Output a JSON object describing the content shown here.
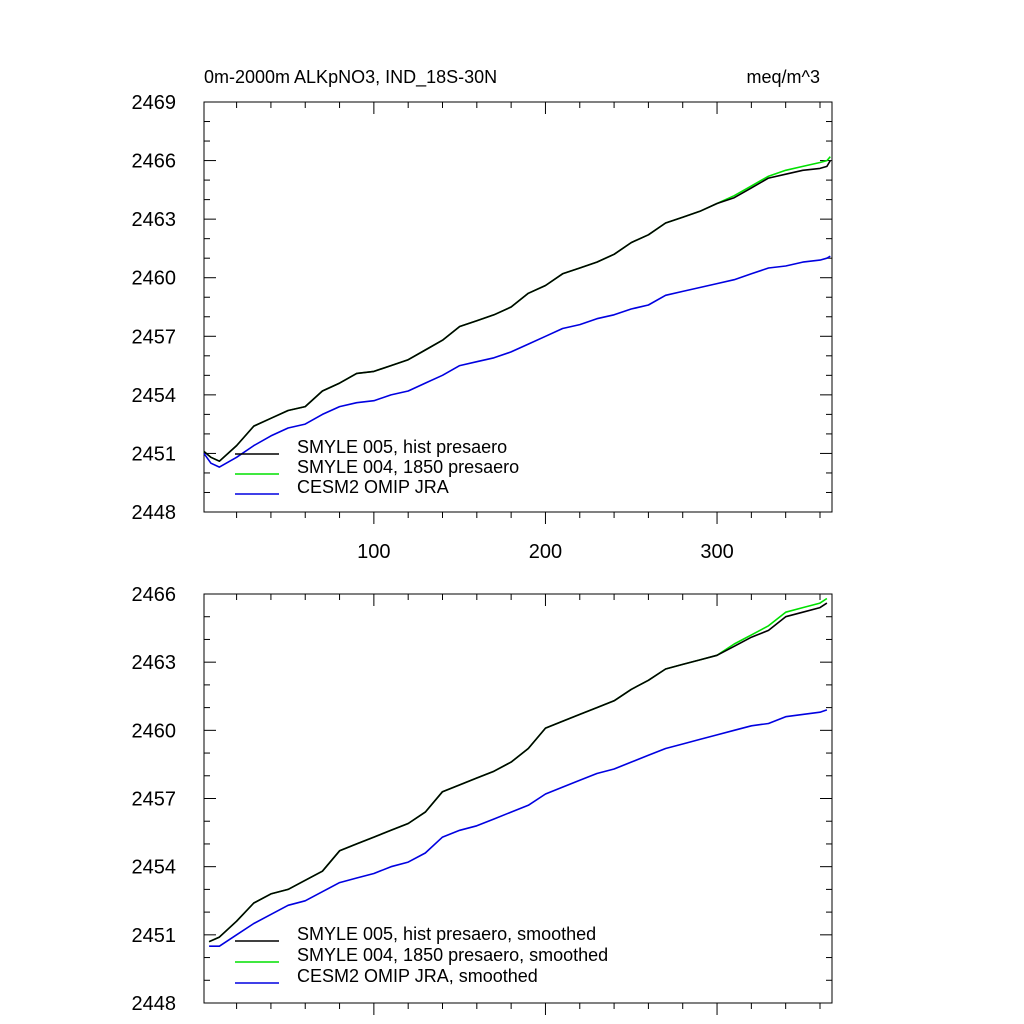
{
  "chart_data": [
    {
      "type": "line",
      "title": "0m-2000m ALKpNO3, IND_18S-30N",
      "units": "meq/m^3",
      "xlim": [
        1,
        367
      ],
      "ylim": [
        2448,
        2469
      ],
      "x_ticks": [
        100,
        200,
        300
      ],
      "y_ticks": [
        2448,
        2451,
        2454,
        2457,
        2460,
        2463,
        2466,
        2469
      ],
      "grid": false,
      "legend_position": "bottom-left",
      "series": [
        {
          "name": "SMYLE 005, hist presaero",
          "color": "#000000",
          "x": [
            1,
            5,
            10,
            20,
            30,
            40,
            50,
            60,
            70,
            80,
            90,
            100,
            110,
            120,
            130,
            140,
            150,
            160,
            170,
            180,
            190,
            200,
            210,
            220,
            230,
            240,
            250,
            260,
            270,
            280,
            290,
            300,
            310,
            320,
            330,
            340,
            350,
            360,
            364,
            366
          ],
          "y": [
            2451.1,
            2450.8,
            2450.6,
            2451.4,
            2452.4,
            2452.8,
            2453.2,
            2453.4,
            2454.2,
            2454.6,
            2455.1,
            2455.2,
            2455.5,
            2455.8,
            2456.3,
            2456.8,
            2457.5,
            2457.8,
            2458.1,
            2458.5,
            2459.2,
            2459.6,
            2460.2,
            2460.5,
            2460.8,
            2461.2,
            2461.8,
            2462.2,
            2462.8,
            2463.1,
            2463.4,
            2463.8,
            2464.1,
            2464.6,
            2465.1,
            2465.3,
            2465.5,
            2465.6,
            2465.7,
            2466.0
          ]
        },
        {
          "name": "SMYLE 004, 1850 presaero",
          "color": "#00e000",
          "x": [
            1,
            5,
            10,
            20,
            30,
            40,
            50,
            60,
            70,
            80,
            90,
            100,
            110,
            120,
            130,
            140,
            150,
            160,
            170,
            180,
            190,
            200,
            210,
            220,
            230,
            240,
            250,
            260,
            270,
            280,
            290,
            300,
            310,
            320,
            330,
            340,
            350,
            360,
            364,
            366
          ],
          "y": [
            2451.1,
            2450.8,
            2450.6,
            2451.4,
            2452.4,
            2452.8,
            2453.2,
            2453.4,
            2454.2,
            2454.6,
            2455.1,
            2455.2,
            2455.5,
            2455.8,
            2456.3,
            2456.8,
            2457.5,
            2457.8,
            2458.1,
            2458.5,
            2459.2,
            2459.6,
            2460.2,
            2460.5,
            2460.8,
            2461.2,
            2461.8,
            2462.2,
            2462.8,
            2463.1,
            2463.4,
            2463.8,
            2464.2,
            2464.7,
            2465.2,
            2465.5,
            2465.7,
            2465.9,
            2466.0,
            2466.2
          ]
        },
        {
          "name": "CESM2 OMIP JRA",
          "color": "#0000e0",
          "x": [
            1,
            5,
            10,
            20,
            30,
            40,
            50,
            60,
            70,
            80,
            90,
            100,
            110,
            120,
            130,
            140,
            150,
            160,
            170,
            180,
            190,
            200,
            210,
            220,
            230,
            240,
            250,
            260,
            270,
            280,
            290,
            300,
            310,
            320,
            330,
            340,
            350,
            360,
            364,
            366
          ],
          "y": [
            2451.0,
            2450.5,
            2450.3,
            2450.8,
            2451.4,
            2451.9,
            2452.3,
            2452.5,
            2453.0,
            2453.4,
            2453.6,
            2453.7,
            2454.0,
            2454.2,
            2454.6,
            2455.0,
            2455.5,
            2455.7,
            2455.9,
            2456.2,
            2456.6,
            2457.0,
            2457.4,
            2457.6,
            2457.9,
            2458.1,
            2458.4,
            2458.6,
            2459.1,
            2459.3,
            2459.5,
            2459.7,
            2459.9,
            2460.2,
            2460.5,
            2460.6,
            2460.8,
            2460.9,
            2461.0,
            2461.1
          ]
        }
      ]
    },
    {
      "type": "line",
      "title": "",
      "xlim": [
        1,
        367
      ],
      "ylim": [
        2448,
        2466
      ],
      "x_ticks": [
        100,
        200,
        300
      ],
      "y_ticks": [
        2448,
        2451,
        2454,
        2457,
        2460,
        2463,
        2466
      ],
      "grid": false,
      "legend_position": "bottom-left",
      "series": [
        {
          "name": "SMYLE 005, hist presaero, smoothed",
          "color": "#000000",
          "x": [
            4,
            10,
            20,
            30,
            40,
            50,
            60,
            70,
            80,
            90,
            100,
            110,
            120,
            130,
            140,
            150,
            160,
            170,
            180,
            190,
            200,
            210,
            220,
            230,
            240,
            250,
            260,
            270,
            280,
            290,
            300,
            310,
            320,
            330,
            340,
            350,
            360,
            364
          ],
          "y": [
            2450.7,
            2450.9,
            2451.6,
            2452.4,
            2452.8,
            2453.0,
            2453.4,
            2453.8,
            2454.7,
            2455.0,
            2455.3,
            2455.6,
            2455.9,
            2456.4,
            2457.3,
            2457.6,
            2457.9,
            2458.2,
            2458.6,
            2459.2,
            2460.1,
            2460.4,
            2460.7,
            2461.0,
            2461.3,
            2461.8,
            2462.2,
            2462.7,
            2462.9,
            2463.1,
            2463.3,
            2463.7,
            2464.1,
            2464.4,
            2465.0,
            2465.2,
            2465.4,
            2465.6
          ]
        },
        {
          "name": "SMYLE 004, 1850 presaero, smoothed",
          "color": "#00e000",
          "x": [
            4,
            10,
            20,
            30,
            40,
            50,
            60,
            70,
            80,
            90,
            100,
            110,
            120,
            130,
            140,
            150,
            160,
            170,
            180,
            190,
            200,
            210,
            220,
            230,
            240,
            250,
            260,
            270,
            280,
            290,
            300,
            310,
            320,
            330,
            340,
            350,
            360,
            364
          ],
          "y": [
            2450.7,
            2450.9,
            2451.6,
            2452.4,
            2452.8,
            2453.0,
            2453.4,
            2453.8,
            2454.7,
            2455.0,
            2455.3,
            2455.6,
            2455.9,
            2456.4,
            2457.3,
            2457.6,
            2457.9,
            2458.2,
            2458.6,
            2459.2,
            2460.1,
            2460.4,
            2460.7,
            2461.0,
            2461.3,
            2461.8,
            2462.2,
            2462.7,
            2462.9,
            2463.1,
            2463.3,
            2463.8,
            2464.2,
            2464.6,
            2465.2,
            2465.4,
            2465.6,
            2465.8
          ]
        },
        {
          "name": "CESM2 OMIP JRA, smoothed",
          "color": "#0000e0",
          "x": [
            4,
            10,
            20,
            30,
            40,
            50,
            60,
            70,
            80,
            90,
            100,
            110,
            120,
            130,
            140,
            150,
            160,
            170,
            180,
            190,
            200,
            210,
            220,
            230,
            240,
            250,
            260,
            270,
            280,
            290,
            300,
            310,
            320,
            330,
            340,
            350,
            360,
            364
          ],
          "y": [
            2450.5,
            2450.5,
            2451.0,
            2451.5,
            2451.9,
            2452.3,
            2452.5,
            2452.9,
            2453.3,
            2453.5,
            2453.7,
            2454.0,
            2454.2,
            2454.6,
            2455.3,
            2455.6,
            2455.8,
            2456.1,
            2456.4,
            2456.7,
            2457.2,
            2457.5,
            2457.8,
            2458.1,
            2458.3,
            2458.6,
            2458.9,
            2459.2,
            2459.4,
            2459.6,
            2459.8,
            2460.0,
            2460.2,
            2460.3,
            2460.6,
            2460.7,
            2460.8,
            2460.9
          ]
        }
      ]
    }
  ]
}
